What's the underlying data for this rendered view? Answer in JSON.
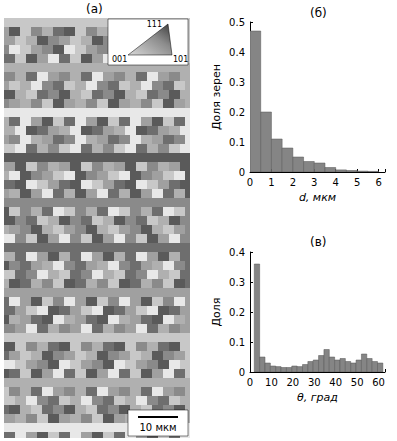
{
  "chart_data": [
    {
      "type": "histogram",
      "title": "(б)",
      "x_label": "d, мкм",
      "y_label": "Доля зерен",
      "bins": [
        0,
        0.5,
        1,
        1.5,
        2,
        2.5,
        3,
        3.5,
        4,
        4.5,
        5,
        5.5,
        6
      ],
      "values": [
        0.47,
        0.2,
        0.11,
        0.08,
        0.05,
        0.035,
        0.03,
        0.015,
        0.007,
        0.005,
        0.003,
        0.002
      ],
      "color": "#858585",
      "grid": false,
      "xlim": [
        0,
        6.3
      ],
      "xticks": [
        0,
        1,
        2,
        3,
        4,
        5,
        6
      ],
      "ylim": [
        0,
        0.5
      ],
      "yticks": [
        0,
        0.1,
        0.2,
        0.3,
        0.4,
        0.5
      ]
    },
    {
      "type": "histogram",
      "title": "(в)",
      "x_label": "θ, град",
      "y_label": "Доля",
      "bins": [
        2,
        4.5,
        7,
        9.5,
        12,
        14.5,
        17,
        19.5,
        22,
        24.5,
        27,
        29.5,
        32,
        34.5,
        37,
        39.5,
        42,
        44.5,
        47,
        49.5,
        52,
        54.5,
        57,
        59.5,
        62
      ],
      "values": [
        0.36,
        0.05,
        0.03,
        0.02,
        0.018,
        0.015,
        0.015,
        0.02,
        0.018,
        0.025,
        0.035,
        0.04,
        0.055,
        0.075,
        0.05,
        0.04,
        0.045,
        0.035,
        0.03,
        0.04,
        0.06,
        0.045,
        0.035,
        0.03
      ],
      "color": "#858585",
      "grid": false,
      "xlim": [
        0,
        63
      ],
      "xticks": [
        0,
        10,
        20,
        30,
        40,
        50,
        60
      ],
      "ylim": [
        0,
        0.4
      ],
      "yticks": [
        0,
        0.1,
        0.2,
        0.3,
        0.4
      ]
    }
  ],
  "map": {
    "title": "(а)",
    "scale_bar": "10 мкм",
    "ipf_labels": [
      "111",
      "001",
      "101"
    ]
  }
}
